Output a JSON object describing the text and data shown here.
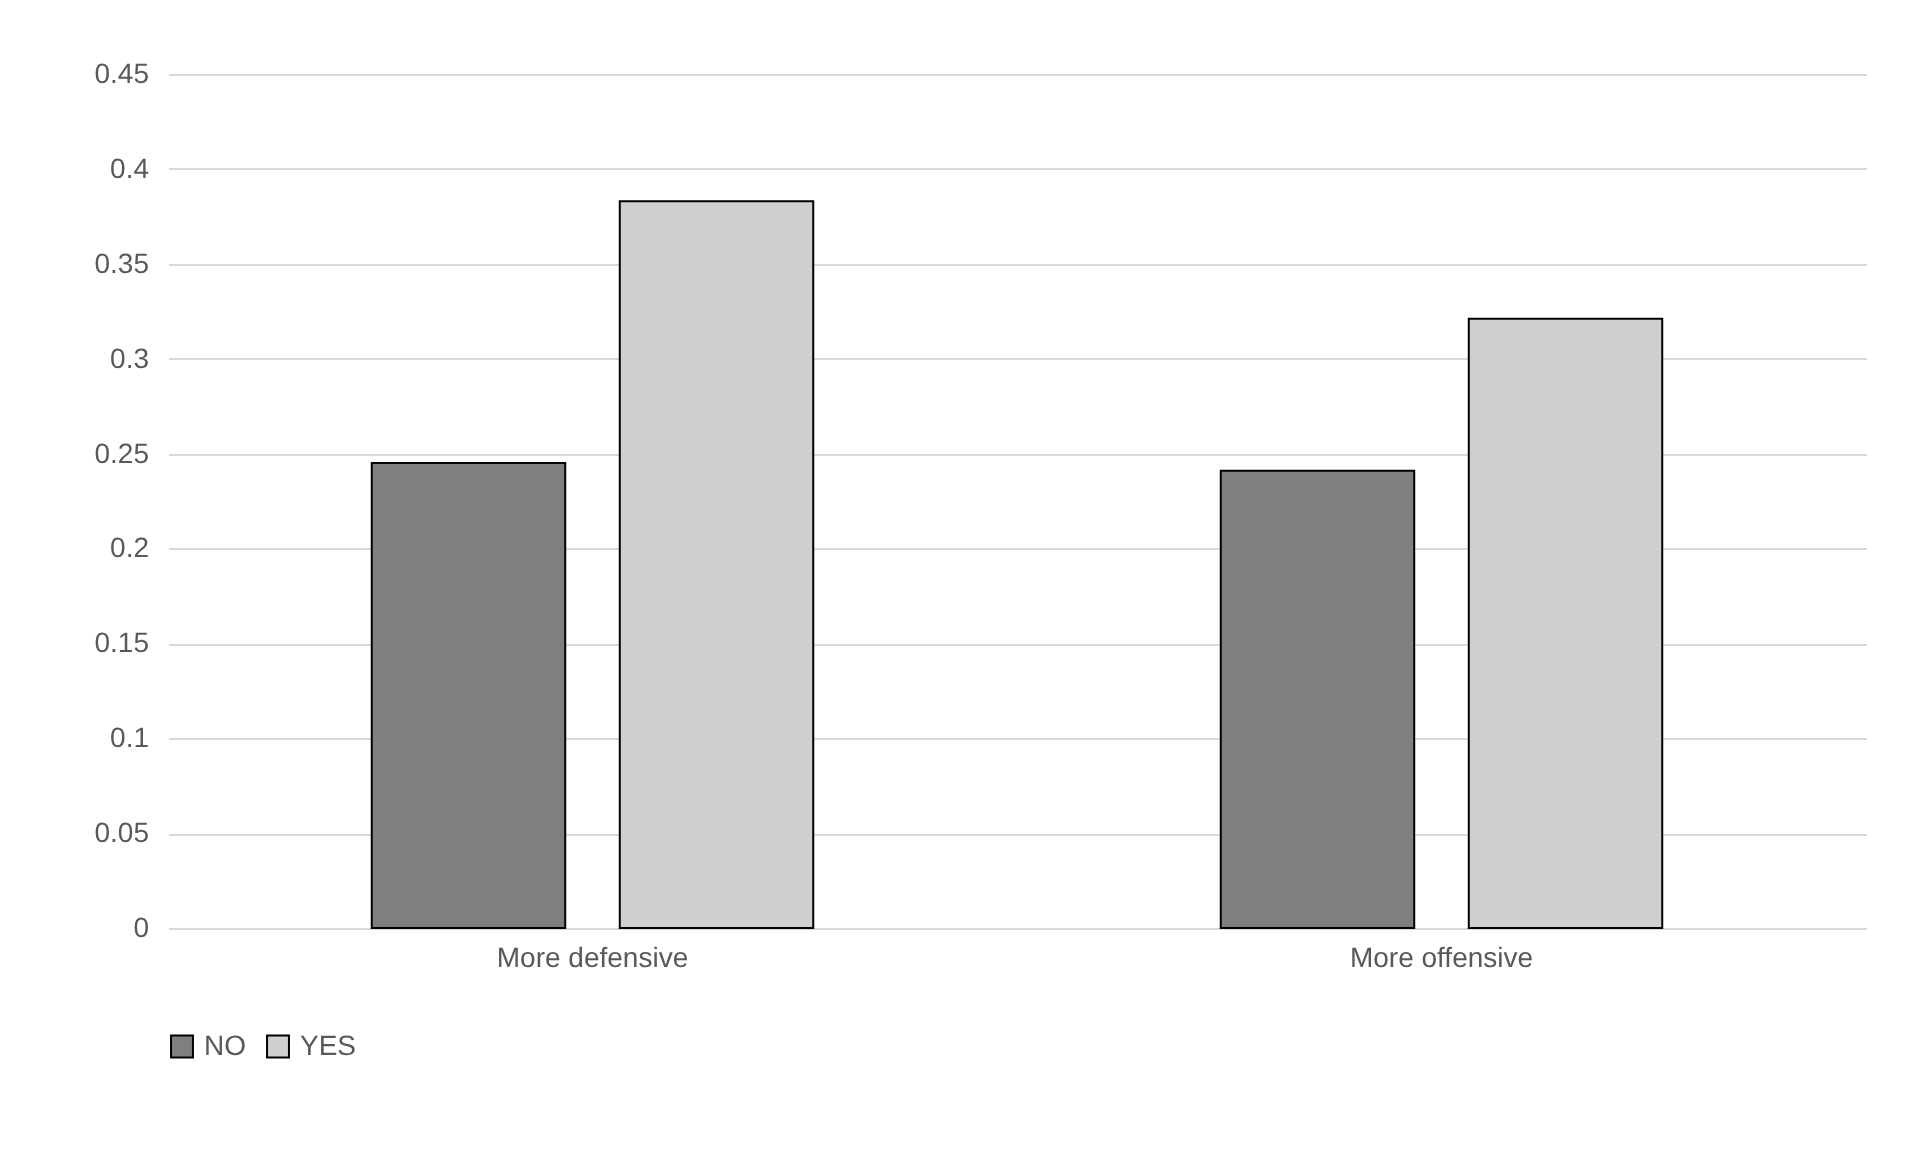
{
  "chart_data": {
    "type": "bar",
    "categories": [
      "More defensive",
      "More offensive"
    ],
    "series": [
      {
        "name": "NO",
        "color": "#7f7f7f",
        "values": [
          0.245,
          0.241
        ]
      },
      {
        "name": "YES",
        "color": "#d0cece",
        "values": [
          0.383,
          0.321
        ]
      }
    ],
    "ylim": [
      0,
      0.45
    ],
    "yticks": [
      0,
      0.05,
      0.1,
      0.15,
      0.2,
      0.25,
      0.3,
      0.35,
      0.4,
      0.45
    ],
    "grid": "y",
    "legend": "bottom"
  }
}
